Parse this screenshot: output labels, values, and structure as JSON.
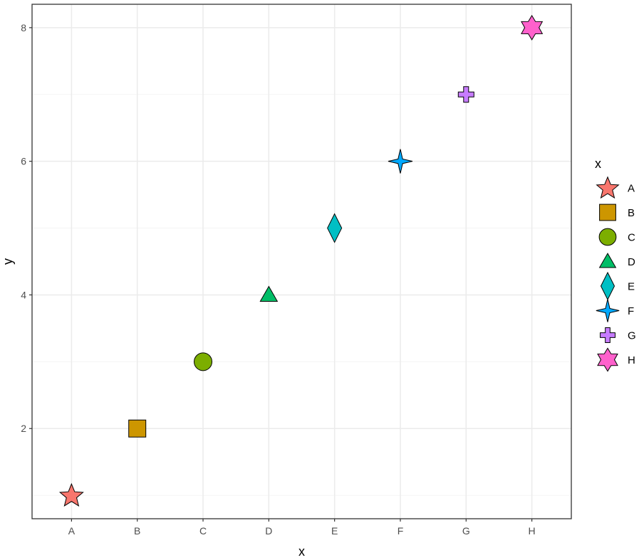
{
  "chart_data": {
    "type": "scatter",
    "title": "",
    "xlabel": "x",
    "ylabel": "y",
    "categories": [
      "A",
      "B",
      "C",
      "D",
      "E",
      "F",
      "G",
      "H"
    ],
    "points": [
      {
        "x": "A",
        "y": 1,
        "shape": "star5",
        "color": "#F8766D"
      },
      {
        "x": "B",
        "y": 2,
        "shape": "square",
        "color": "#CD9600"
      },
      {
        "x": "C",
        "y": 3,
        "shape": "circle",
        "color": "#7CAE00"
      },
      {
        "x": "D",
        "y": 4,
        "shape": "triangle",
        "color": "#00BE67"
      },
      {
        "x": "E",
        "y": 5,
        "shape": "diamond",
        "color": "#00BFC4"
      },
      {
        "x": "F",
        "y": 6,
        "shape": "star4",
        "color": "#00A9FF"
      },
      {
        "x": "G",
        "y": 7,
        "shape": "cross",
        "color": "#C77CFF"
      },
      {
        "x": "H",
        "y": 8,
        "shape": "star6",
        "color": "#FF61CC"
      }
    ],
    "yticks": [
      2,
      4,
      6,
      8
    ],
    "ylim": [
      0.65,
      8.35
    ],
    "grid": true,
    "legend": {
      "title": "x",
      "position": "right",
      "entries": [
        "A",
        "B",
        "C",
        "D",
        "E",
        "F",
        "G",
        "H"
      ]
    }
  }
}
